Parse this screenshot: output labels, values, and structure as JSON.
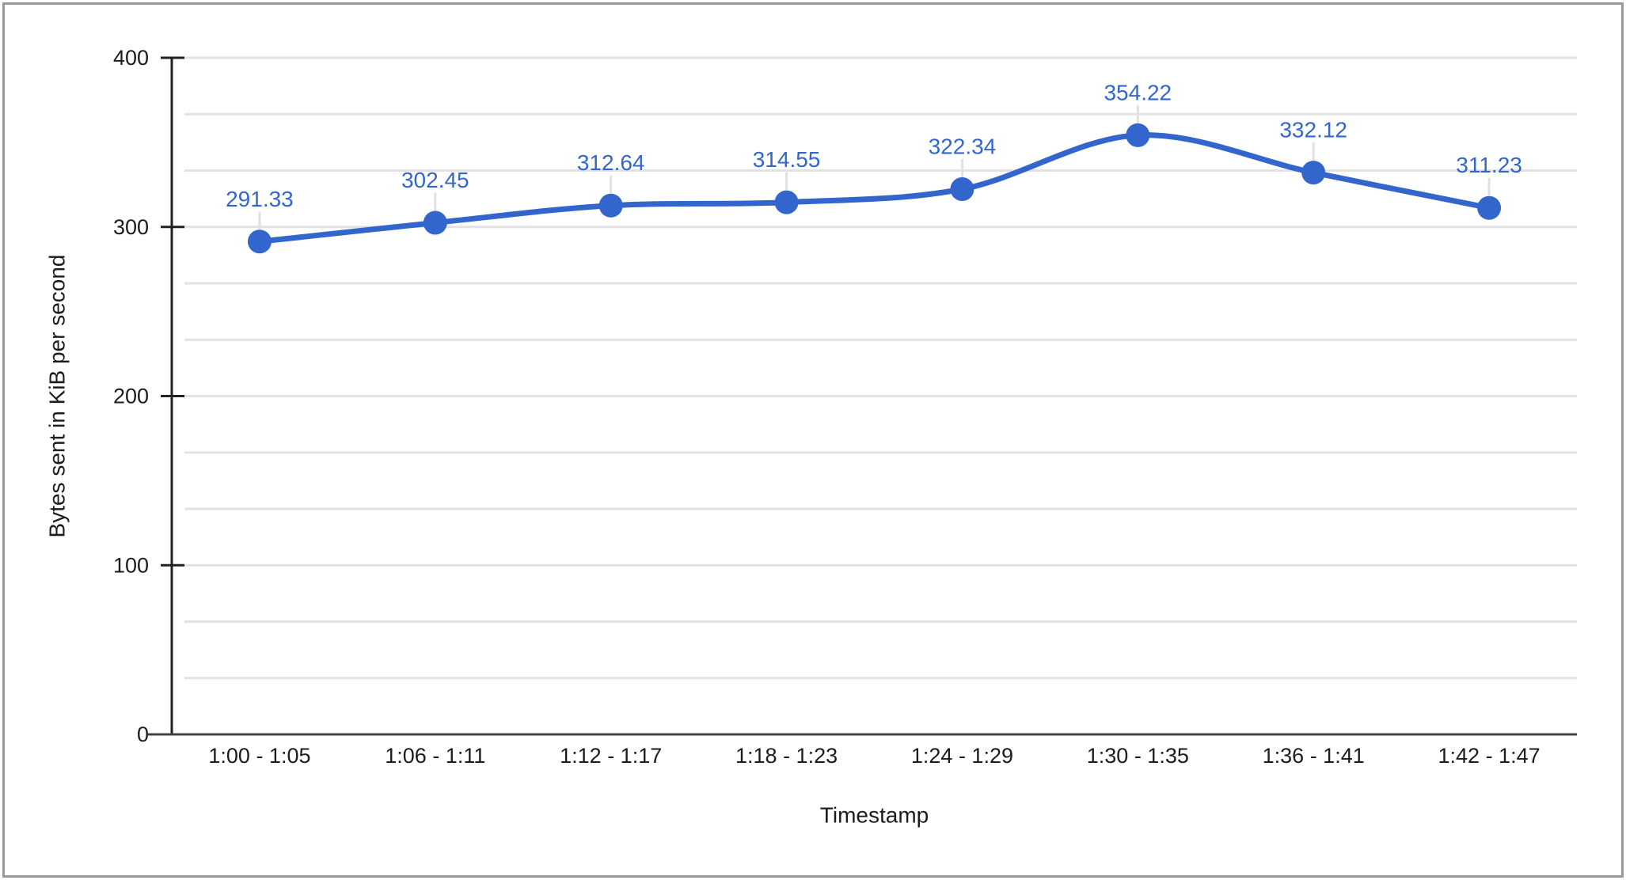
{
  "chart_data": {
    "type": "line",
    "title": "",
    "xlabel": "Timestamp",
    "ylabel": "Bytes sent in KiB per second",
    "categories": [
      "1:00 - 1:05",
      "1:06 - 1:11",
      "1:12 - 1:17",
      "1:18 - 1:23",
      "1:24 - 1:29",
      "1:30 - 1:35",
      "1:36 - 1:41",
      "1:42 - 1:47"
    ],
    "series": [
      {
        "name": "Bytes sent in KiB per second",
        "values": [
          291.33,
          302.45,
          312.64,
          314.55,
          322.34,
          354.22,
          332.12,
          311.23
        ]
      }
    ],
    "data_labels": [
      "291.33",
      "302.45",
      "312.64",
      "314.55",
      "322.34",
      "354.22",
      "332.12",
      "311.23"
    ],
    "ylim": [
      0,
      400
    ],
    "y_major_ticks": [
      0,
      100,
      200,
      300,
      400
    ],
    "y_minor_divisions_per_major": 3,
    "grid": true,
    "smooth": true,
    "point_markers": true,
    "data_labels_visible": true,
    "legend_position": "none"
  },
  "colors": {
    "series": "#3366cc",
    "data_label": "#3366cc",
    "axis_line": "#212121",
    "baseline": "#424242",
    "tick_label": "#1c1c1c",
    "axis_title": "#1c1c1c",
    "gridline": "#e2e2e2",
    "label_stem": "#e0e0e0",
    "frame_border": "#999999",
    "background": "#ffffff"
  }
}
